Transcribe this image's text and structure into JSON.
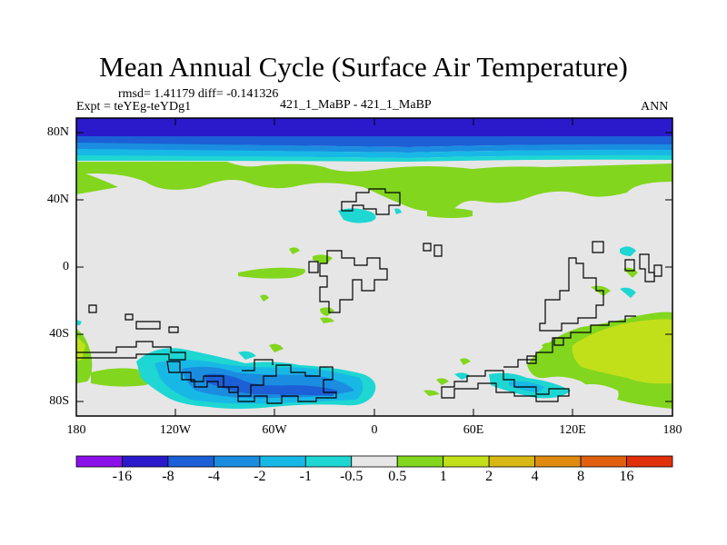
{
  "title": "Mean Annual Cycle (Surface Air Temperature)",
  "stats": "rmsd= 1.41179 diff= -0.141326",
  "expt": "Expt = teYEg-teYDg1",
  "comparison": "421_1_MaBP - 421_1_MaBP",
  "season": "ANN",
  "y_ticks": [
    "80N",
    "40N",
    "0",
    "40S",
    "80S"
  ],
  "x_ticks": [
    "180",
    "120W",
    "60W",
    "0",
    "60E",
    "120E",
    "180"
  ],
  "colorbar": {
    "labels": [
      "-16",
      "-8",
      "-4",
      "-2",
      "-1",
      "-0.5",
      "0.5",
      "1",
      "2",
      "4",
      "8",
      "16"
    ],
    "colors": [
      "#8a12e8",
      "#2a1acc",
      "#1c5fd6",
      "#1a8de0",
      "#18b8e6",
      "#1ed6d2",
      "#e6e6e6",
      "#82d61e",
      "#c2e01a",
      "#d8b814",
      "#e08a10",
      "#e06010",
      "#e0300c"
    ]
  },
  "palette": {
    "background": "#e6e6e6",
    "frame": "#000000"
  }
}
